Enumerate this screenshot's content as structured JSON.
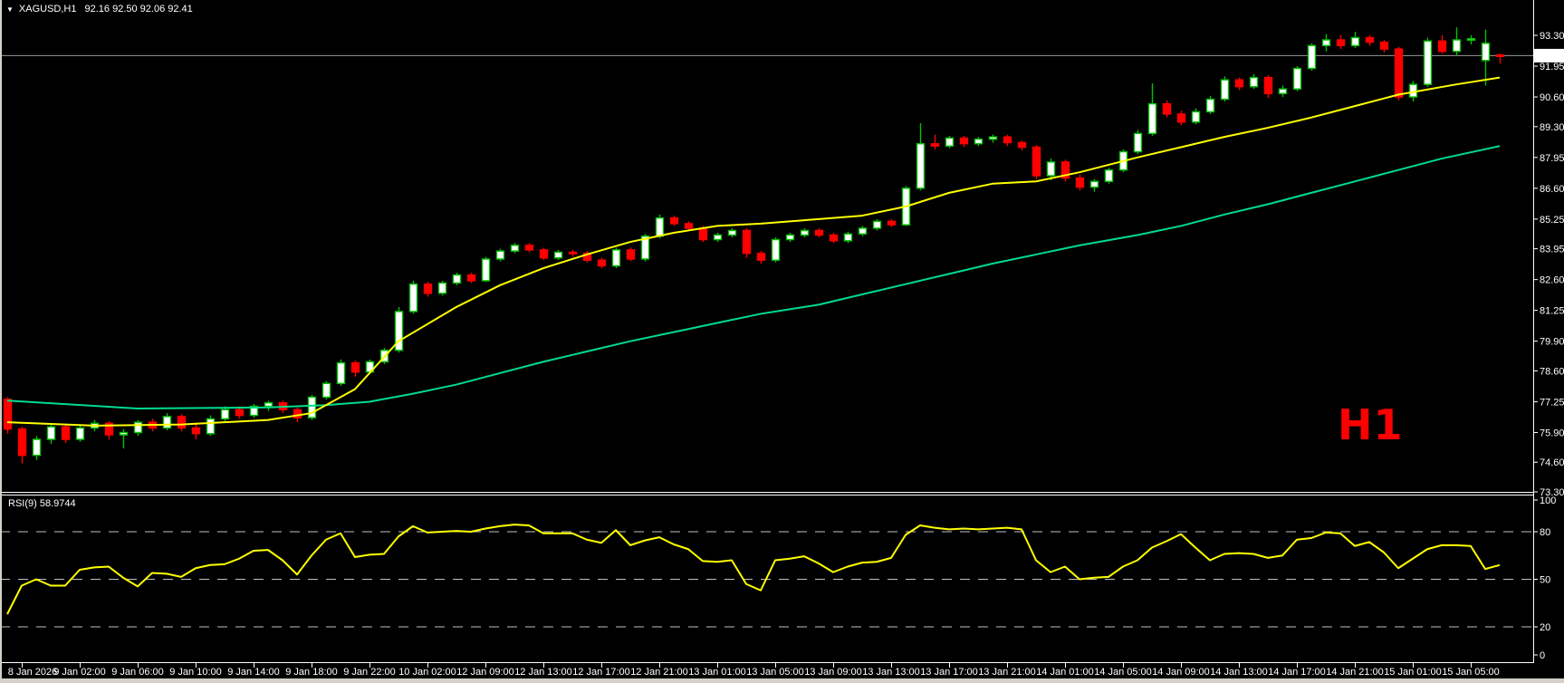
{
  "header": {
    "dropdown_icon": "▼",
    "title": "XAGUSD,H1",
    "ohlc": "92.16 92.50 92.06 92.41"
  },
  "chart_data": {
    "type": "candlestick",
    "symbol": "XAGUSD",
    "timeframe": "H1",
    "watermark": "H1",
    "current_bar": {
      "open": 92.16,
      "high": 92.5,
      "low": 92.06,
      "close": 92.41
    },
    "current_price": 92.41,
    "current_price_label": "92.41",
    "price_axis": {
      "ylim": [
        73.3,
        93.3
      ],
      "ticks": [
        "93.30",
        "91.95",
        "90.60",
        "89.30",
        "87.95",
        "86.60",
        "85.25",
        "83.95",
        "82.60",
        "81.25",
        "79.90",
        "78.60",
        "77.25",
        "75.90",
        "74.60",
        "73.30"
      ]
    },
    "x_labels": [
      "8 Jan 2026",
      "9 Jan 02:00",
      "9 Jan 06:00",
      "9 Jan 10:00",
      "9 Jan 14:00",
      "9 Jan 18:00",
      "9 Jan 22:00",
      "10 Jan 02:00",
      "12 Jan 09:00",
      "12 Jan 13:00",
      "12 Jan 17:00",
      "12 Jan 21:00",
      "13 Jan 01:00",
      "13 Jan 05:00",
      "13 Jan 09:00",
      "13 Jan 13:00",
      "13 Jan 17:00",
      "13 Jan 21:00",
      "14 Jan 01:00",
      "14 Jan 05:00",
      "14 Jan 09:00",
      "14 Jan 13:00",
      "14 Jan 17:00",
      "14 Jan 21:00",
      "15 Jan 01:00",
      "15 Jan 05:00"
    ],
    "bars_per_label": 4,
    "colors": {
      "bull_fill": "#FFFFFF",
      "bull_stroke": "#00C300",
      "bear": "#FF0000",
      "price_line": "#9A9A9A",
      "grid_dash": "#C0C0C0"
    },
    "candles": [
      [
        77.35,
        77.45,
        75.85,
        76.05
      ],
      [
        76.05,
        76.15,
        74.55,
        74.9
      ],
      [
        74.9,
        75.75,
        74.7,
        75.6
      ],
      [
        75.6,
        76.3,
        75.4,
        76.15
      ],
      [
        76.15,
        76.25,
        75.45,
        75.6
      ],
      [
        75.6,
        76.2,
        75.5,
        76.1
      ],
      [
        76.1,
        76.45,
        75.95,
        76.3
      ],
      [
        76.3,
        76.4,
        75.6,
        75.8
      ],
      [
        75.8,
        76.05,
        75.2,
        75.9
      ],
      [
        75.9,
        76.45,
        75.75,
        76.35
      ],
      [
        76.35,
        76.5,
        75.95,
        76.1
      ],
      [
        76.1,
        76.75,
        76.0,
        76.6
      ],
      [
        76.6,
        76.7,
        75.95,
        76.1
      ],
      [
        76.1,
        76.35,
        75.6,
        75.85
      ],
      [
        75.85,
        76.65,
        75.75,
        76.5
      ],
      [
        76.5,
        77.05,
        76.4,
        76.9
      ],
      [
        76.9,
        77.05,
        76.5,
        76.65
      ],
      [
        76.65,
        77.15,
        76.55,
        77.05
      ],
      [
        77.05,
        77.3,
        76.85,
        77.2
      ],
      [
        77.2,
        77.3,
        76.75,
        76.9
      ],
      [
        76.9,
        77.0,
        76.35,
        76.55
      ],
      [
        76.55,
        77.55,
        76.45,
        77.45
      ],
      [
        77.45,
        78.15,
        77.35,
        78.05
      ],
      [
        78.05,
        79.1,
        77.95,
        78.95
      ],
      [
        78.95,
        79.05,
        78.35,
        78.55
      ],
      [
        78.55,
        79.1,
        78.45,
        79.0
      ],
      [
        79.0,
        79.6,
        78.9,
        79.5
      ],
      [
        79.5,
        81.4,
        79.4,
        81.2
      ],
      [
        81.2,
        82.55,
        81.1,
        82.4
      ],
      [
        82.4,
        82.5,
        81.85,
        82.0
      ],
      [
        82.0,
        82.55,
        81.9,
        82.45
      ],
      [
        82.45,
        82.9,
        82.35,
        82.8
      ],
      [
        82.8,
        82.9,
        82.45,
        82.55
      ],
      [
        82.55,
        83.6,
        82.5,
        83.5
      ],
      [
        83.5,
        83.95,
        83.4,
        83.85
      ],
      [
        83.85,
        84.2,
        83.75,
        84.1
      ],
      [
        84.1,
        84.2,
        83.8,
        83.9
      ],
      [
        83.9,
        84.0,
        83.45,
        83.55
      ],
      [
        83.55,
        83.9,
        83.45,
        83.8
      ],
      [
        83.8,
        83.9,
        83.6,
        83.75
      ],
      [
        83.75,
        83.85,
        83.35,
        83.45
      ],
      [
        83.45,
        83.55,
        83.1,
        83.2
      ],
      [
        83.2,
        84.0,
        83.1,
        83.9
      ],
      [
        83.9,
        84.0,
        83.4,
        83.5
      ],
      [
        83.5,
        84.6,
        83.4,
        84.5
      ],
      [
        84.5,
        85.45,
        84.4,
        85.3
      ],
      [
        85.3,
        85.4,
        84.95,
        85.05
      ],
      [
        85.05,
        85.15,
        84.75,
        84.85
      ],
      [
        84.85,
        84.95,
        84.25,
        84.35
      ],
      [
        84.35,
        84.65,
        84.25,
        84.55
      ],
      [
        84.55,
        84.85,
        84.45,
        84.75
      ],
      [
        84.75,
        84.85,
        83.55,
        83.75
      ],
      [
        83.75,
        83.85,
        83.3,
        83.45
      ],
      [
        83.45,
        84.45,
        83.35,
        84.35
      ],
      [
        84.35,
        84.65,
        84.25,
        84.55
      ],
      [
        84.55,
        84.85,
        84.45,
        84.75
      ],
      [
        84.75,
        84.85,
        84.45,
        84.55
      ],
      [
        84.55,
        84.65,
        84.2,
        84.3
      ],
      [
        84.3,
        84.7,
        84.2,
        84.6
      ],
      [
        84.6,
        84.95,
        84.5,
        84.85
      ],
      [
        84.85,
        85.25,
        84.75,
        85.15
      ],
      [
        85.15,
        85.25,
        84.9,
        85.0
      ],
      [
        85.0,
        86.7,
        84.95,
        86.6
      ],
      [
        86.6,
        89.45,
        86.5,
        88.55
      ],
      [
        88.55,
        88.95,
        88.3,
        88.45
      ],
      [
        88.45,
        88.9,
        88.35,
        88.8
      ],
      [
        88.8,
        88.9,
        88.4,
        88.55
      ],
      [
        88.55,
        88.85,
        88.45,
        88.75
      ],
      [
        88.75,
        88.95,
        88.6,
        88.85
      ],
      [
        88.85,
        88.95,
        88.45,
        88.6
      ],
      [
        88.6,
        88.7,
        88.25,
        88.4
      ],
      [
        88.4,
        88.5,
        87.0,
        87.15
      ],
      [
        87.15,
        87.9,
        86.95,
        87.75
      ],
      [
        87.75,
        87.85,
        86.9,
        87.05
      ],
      [
        87.05,
        87.2,
        86.5,
        86.65
      ],
      [
        86.65,
        87.0,
        86.45,
        86.9
      ],
      [
        86.9,
        87.5,
        86.8,
        87.4
      ],
      [
        87.4,
        88.3,
        87.3,
        88.2
      ],
      [
        88.2,
        89.15,
        88.1,
        89.0
      ],
      [
        89.0,
        91.2,
        88.9,
        90.3
      ],
      [
        90.3,
        90.45,
        89.7,
        89.85
      ],
      [
        89.85,
        90.0,
        89.35,
        89.5
      ],
      [
        89.5,
        90.1,
        89.4,
        89.95
      ],
      [
        89.95,
        90.65,
        89.85,
        90.5
      ],
      [
        90.5,
        91.5,
        90.4,
        91.35
      ],
      [
        91.35,
        91.45,
        90.9,
        91.05
      ],
      [
        91.05,
        91.6,
        90.95,
        91.45
      ],
      [
        91.45,
        91.55,
        90.55,
        90.75
      ],
      [
        90.75,
        91.1,
        90.6,
        90.95
      ],
      [
        90.95,
        91.95,
        90.85,
        91.85
      ],
      [
        91.85,
        92.95,
        91.75,
        92.85
      ],
      [
        92.85,
        93.35,
        92.6,
        93.1
      ],
      [
        93.1,
        93.3,
        92.7,
        92.85
      ],
      [
        92.85,
        93.45,
        92.75,
        93.2
      ],
      [
        93.2,
        93.3,
        92.85,
        93.0
      ],
      [
        93.0,
        93.1,
        92.55,
        92.7
      ],
      [
        92.7,
        92.8,
        90.45,
        90.6
      ],
      [
        90.6,
        91.3,
        90.4,
        91.15
      ],
      [
        91.15,
        93.2,
        91.05,
        93.05
      ],
      [
        93.05,
        93.3,
        92.5,
        92.6
      ],
      [
        92.6,
        93.65,
        92.4,
        93.1
      ],
      [
        93.1,
        93.3,
        92.9,
        93.15
      ],
      [
        92.2,
        93.55,
        91.1,
        92.95
      ],
      [
        92.44,
        92.5,
        92.06,
        92.41
      ]
    ],
    "ma_fast": {
      "name": "MA fast",
      "color": "#FFFF00",
      "points": [
        [
          0,
          76.35
        ],
        [
          6,
          76.2
        ],
        [
          12,
          76.25
        ],
        [
          18,
          76.45
        ],
        [
          21,
          76.75
        ],
        [
          24,
          77.8
        ],
        [
          27,
          79.9
        ],
        [
          31,
          81.4
        ],
        [
          34,
          82.35
        ],
        [
          37,
          83.1
        ],
        [
          40,
          83.7
        ],
        [
          43,
          84.25
        ],
        [
          46,
          84.65
        ],
        [
          49,
          84.95
        ],
        [
          52,
          85.05
        ],
        [
          56,
          85.25
        ],
        [
          59,
          85.4
        ],
        [
          62,
          85.8
        ],
        [
          65,
          86.4
        ],
        [
          68,
          86.8
        ],
        [
          71,
          86.9
        ],
        [
          74,
          87.3
        ],
        [
          78,
          87.95
        ],
        [
          81,
          88.4
        ],
        [
          84,
          88.85
        ],
        [
          87,
          89.25
        ],
        [
          90,
          89.7
        ],
        [
          93,
          90.2
        ],
        [
          96,
          90.7
        ],
        [
          100,
          91.15
        ],
        [
          103,
          91.45
        ]
      ]
    },
    "ma_slow": {
      "name": "MA slow",
      "color": "#00DC8C",
      "points": [
        [
          0,
          77.3
        ],
        [
          9,
          76.95
        ],
        [
          18,
          77.0
        ],
        [
          22,
          77.1
        ],
        [
          25,
          77.25
        ],
        [
          28,
          77.6
        ],
        [
          31,
          78.0
        ],
        [
          34,
          78.5
        ],
        [
          37,
          79.0
        ],
        [
          40,
          79.45
        ],
        [
          43,
          79.9
        ],
        [
          46,
          80.3
        ],
        [
          49,
          80.7
        ],
        [
          52,
          81.1
        ],
        [
          56,
          81.5
        ],
        [
          59,
          81.95
        ],
        [
          62,
          82.4
        ],
        [
          65,
          82.85
        ],
        [
          68,
          83.3
        ],
        [
          71,
          83.7
        ],
        [
          74,
          84.1
        ],
        [
          78,
          84.55
        ],
        [
          81,
          84.95
        ],
        [
          84,
          85.45
        ],
        [
          87,
          85.9
        ],
        [
          90,
          86.4
        ],
        [
          93,
          86.9
        ],
        [
          96,
          87.4
        ],
        [
          99,
          87.9
        ],
        [
          103,
          88.45
        ]
      ]
    },
    "rsi": {
      "label": "RSI(9) 58.9744",
      "period": 9,
      "value": 58.9744,
      "color": "#FFFF00",
      "levels": [
        80,
        50,
        20
      ],
      "axis_labels": [
        "100",
        "80",
        "50",
        "20",
        "0"
      ],
      "values": [
        28,
        46,
        50,
        46,
        46,
        56,
        57.5,
        58,
        51,
        45.5,
        54,
        53.5,
        51.5,
        57,
        59,
        59.5,
        63,
        68,
        68.5,
        62,
        53,
        65,
        75,
        79,
        64,
        65.5,
        66,
        77,
        83.5,
        79.5,
        80,
        80.5,
        80,
        82,
        83.5,
        84.5,
        84,
        79,
        79,
        79,
        75,
        73,
        81,
        71.5,
        74.5,
        76.5,
        72,
        69,
        61.5,
        61,
        62,
        47,
        43,
        62,
        63,
        64.5,
        60,
        54.5,
        58,
        60.5,
        61,
        63.5,
        78,
        84,
        82.5,
        81.5,
        82,
        81.5,
        82,
        82.5,
        81.5,
        62,
        54.5,
        58,
        50,
        51,
        51.5,
        58,
        62,
        70,
        74,
        78.5,
        70,
        62,
        66,
        66.5,
        66,
        63.5,
        65,
        75,
        76,
        79.5,
        79,
        71,
        73.5,
        67,
        57,
        63,
        69,
        71.5,
        71.5,
        71,
        56.5,
        58.97
      ]
    }
  }
}
